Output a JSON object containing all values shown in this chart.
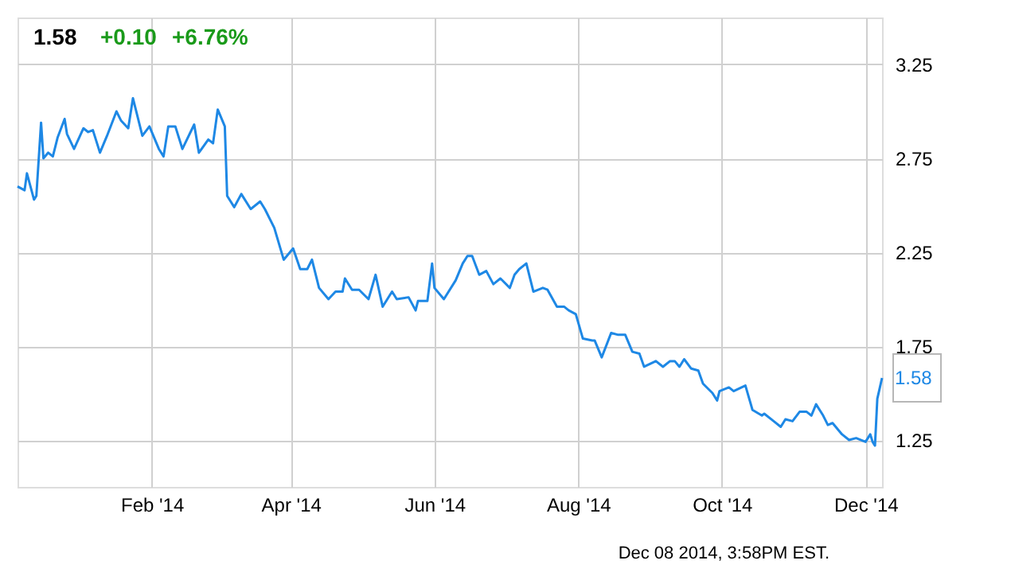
{
  "chart_data": {
    "type": "line",
    "title": "1.58",
    "annotations": [
      "+0.10",
      "+6.76%",
      "Dec 08 2014, 3:58PM EST."
    ],
    "x": [
      "2013-12-06",
      "2013-12-09",
      "2013-12-10",
      "2013-12-13",
      "2013-12-14",
      "2013-12-16",
      "2013-12-17",
      "2013-12-19",
      "2013-12-21",
      "2013-12-23",
      "2013-12-26",
      "2013-12-27",
      "2013-12-30",
      "2014-01-03",
      "2014-01-05",
      "2014-01-07",
      "2014-01-10",
      "2014-01-13",
      "2014-01-17",
      "2014-01-19",
      "2014-01-22",
      "2014-01-24",
      "2014-01-28",
      "2014-01-31",
      "2014-02-04",
      "2014-02-06",
      "2014-02-08",
      "2014-02-11",
      "2014-02-14",
      "2014-02-19",
      "2014-02-21",
      "2014-02-25",
      "2014-02-27",
      "2014-03-01",
      "2014-03-04",
      "2014-03-05",
      "2014-03-08",
      "2014-03-11",
      "2014-03-15",
      "2014-03-19",
      "2014-03-21",
      "2014-03-25",
      "2014-03-29",
      "2014-04-02",
      "2014-04-05",
      "2014-04-08",
      "2014-04-10",
      "2014-04-13",
      "2014-04-17",
      "2014-04-20",
      "2014-04-23",
      "2014-04-24",
      "2014-04-27",
      "2014-04-30",
      "2014-05-04",
      "2014-05-07",
      "2014-05-10",
      "2014-05-14",
      "2014-05-16",
      "2014-05-21",
      "2014-05-24",
      "2014-05-25",
      "2014-05-29",
      "2014-05-31",
      "2014-06-01",
      "2014-06-05",
      "2014-06-10",
      "2014-06-13",
      "2014-06-15",
      "2014-06-17",
      "2014-06-20",
      "2014-06-23",
      "2014-06-26",
      "2014-06-29",
      "2014-07-03",
      "2014-07-05",
      "2014-07-07",
      "2014-07-10",
      "2014-07-13",
      "2014-07-17",
      "2014-07-19",
      "2014-07-23",
      "2014-07-26",
      "2014-07-28",
      "2014-07-31",
      "2014-08-03",
      "2014-08-07",
      "2014-08-08",
      "2014-08-11",
      "2014-08-15",
      "2014-08-18",
      "2014-08-21",
      "2014-08-24",
      "2014-08-27",
      "2014-08-29",
      "2014-09-03",
      "2014-09-06",
      "2014-09-09",
      "2014-09-11",
      "2014-09-13",
      "2014-09-15",
      "2014-09-18",
      "2014-09-21",
      "2014-09-23",
      "2014-09-27",
      "2014-09-29",
      "2014-09-30",
      "2014-10-04",
      "2014-10-06",
      "2014-10-11",
      "2014-10-14",
      "2014-10-18",
      "2014-10-19",
      "2014-10-23",
      "2014-10-26",
      "2014-10-28",
      "2014-10-31",
      "2014-11-03",
      "2014-11-06",
      "2014-11-08",
      "2014-11-10",
      "2014-11-13",
      "2014-11-15",
      "2014-11-17",
      "2014-11-21",
      "2014-11-24",
      "2014-11-27",
      "2014-12-01",
      "2014-12-03",
      "2014-12-04",
      "2014-12-05",
      "2014-12-06",
      "2014-12-08"
    ],
    "series": [
      {
        "color": "#1e88e5",
        "values": [
          2.6,
          2.58,
          2.67,
          2.53,
          2.55,
          2.94,
          2.75,
          2.78,
          2.76,
          2.86,
          2.96,
          2.88,
          2.8,
          2.91,
          2.89,
          2.9,
          2.78,
          2.87,
          3.0,
          2.95,
          2.91,
          3.07,
          2.87,
          2.92,
          2.8,
          2.76,
          2.92,
          2.92,
          2.8,
          2.93,
          2.78,
          2.85,
          2.83,
          3.01,
          2.92,
          2.55,
          2.49,
          2.56,
          2.48,
          2.52,
          2.48,
          2.38,
          2.21,
          2.27,
          2.16,
          2.16,
          2.21,
          2.06,
          2.0,
          2.04,
          2.04,
          2.11,
          2.05,
          2.05,
          2.0,
          2.13,
          1.96,
          2.04,
          2.0,
          2.01,
          1.94,
          1.99,
          1.99,
          2.19,
          2.06,
          2.0,
          2.1,
          2.19,
          2.23,
          2.23,
          2.13,
          2.15,
          2.08,
          2.11,
          2.06,
          2.13,
          2.16,
          2.19,
          2.04,
          2.06,
          2.05,
          1.96,
          1.96,
          1.94,
          1.92,
          1.79,
          1.78,
          1.78,
          1.69,
          1.82,
          1.81,
          1.81,
          1.72,
          1.71,
          1.64,
          1.67,
          1.64,
          1.67,
          1.67,
          1.64,
          1.68,
          1.63,
          1.62,
          1.55,
          1.5,
          1.46,
          1.51,
          1.53,
          1.51,
          1.54,
          1.41,
          1.38,
          1.39,
          1.35,
          1.32,
          1.36,
          1.35,
          1.4,
          1.4,
          1.38,
          1.44,
          1.38,
          1.33,
          1.34,
          1.28,
          1.25,
          1.26,
          1.24,
          1.28,
          1.24,
          1.22,
          1.47,
          1.58
        ],
        "value_labels": [
          null,
          null,
          null,
          null,
          null,
          null,
          null,
          null,
          null,
          null,
          null,
          null,
          null,
          null,
          null,
          null,
          null,
          null,
          null,
          null,
          null,
          null,
          null,
          null,
          null,
          null,
          null,
          null,
          null,
          null,
          null,
          null,
          null,
          null,
          null,
          null,
          null,
          null,
          null,
          null,
          null,
          null,
          null,
          null,
          null,
          null,
          null,
          null,
          null,
          null,
          null,
          null,
          null,
          null,
          null,
          null,
          null,
          null,
          null,
          null,
          null,
          null,
          null,
          null,
          null,
          null,
          null,
          null,
          null,
          null,
          null,
          null,
          null,
          null,
          null,
          null,
          null,
          null,
          null,
          null,
          null,
          null,
          null,
          null,
          null,
          null,
          null,
          null,
          null,
          null,
          null,
          null,
          null,
          null,
          null,
          null,
          null,
          null,
          null,
          null,
          null,
          null,
          null,
          null,
          null,
          null,
          null,
          null,
          null,
          null,
          null,
          null,
          null,
          null,
          null,
          null,
          null,
          null,
          null,
          null,
          null,
          null,
          null,
          null,
          null,
          null,
          null,
          null,
          null,
          null,
          null,
          null,
          "1.58"
        ]
      }
    ],
    "xlim": [
      "2013-12-06",
      "2014-12-08"
    ],
    "xticks": [
      {
        "value": "2014-02-01",
        "label": "Feb '14"
      },
      {
        "value": "2014-04-01",
        "label": "Apr '14"
      },
      {
        "value": "2014-06-01",
        "label": "Jun '14"
      },
      {
        "value": "2014-08-01",
        "label": "Aug '14"
      },
      {
        "value": "2014-10-01",
        "label": "Oct '14"
      },
      {
        "value": "2014-12-01",
        "label": "Dec '14"
      }
    ],
    "ylim": [
      1.0,
      3.5
    ],
    "yticks": [
      1.25,
      1.75,
      2.25,
      2.75,
      3.25
    ],
    "grid": true,
    "line_style": "solid",
    "marker": "none"
  }
}
